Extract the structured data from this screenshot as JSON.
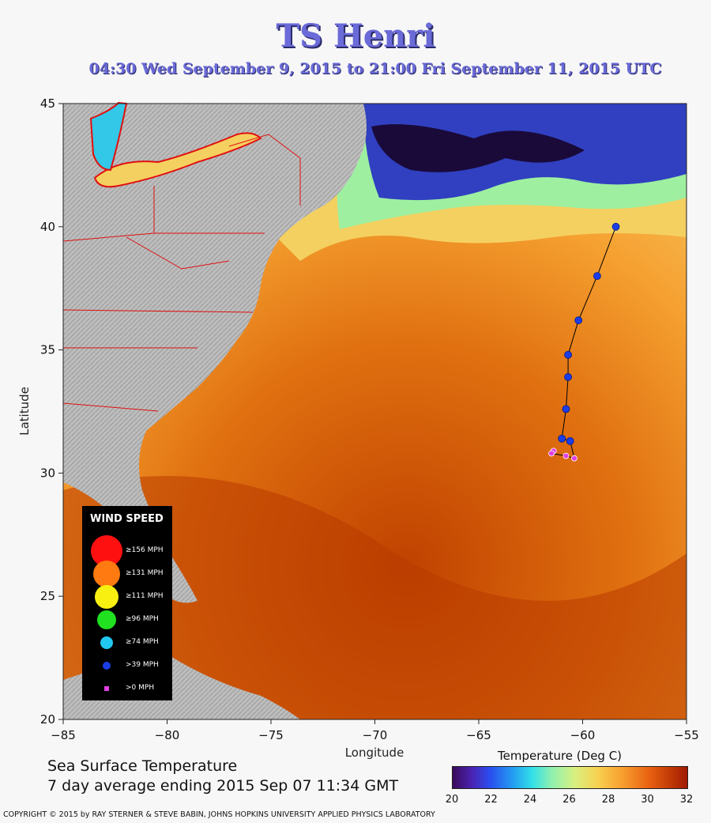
{
  "header": {
    "title": "TS Henri",
    "subtitle": "04:30 Wed September  9, 2015 to 21:00 Fri September 11, 2015  UTC"
  },
  "map": {
    "type": "hurricane-track-map",
    "x_axis": {
      "label": "Longitude",
      "ticks": [
        "-85",
        "-80",
        "-75",
        "-70",
        "-65",
        "-60",
        "-55"
      ],
      "range": [
        -85,
        -55
      ]
    },
    "y_axis": {
      "label": "Latitude",
      "ticks": [
        "20",
        "25",
        "30",
        "35",
        "40",
        "45"
      ],
      "range": [
        20,
        45
      ]
    },
    "track": [
      {
        "lon": -61.4,
        "lat": 30.9,
        "category": ">0 MPH"
      },
      {
        "lon": -61.5,
        "lat": 30.8,
        "category": ">0 MPH"
      },
      {
        "lon": -60.8,
        "lat": 30.7,
        "category": ">0 MPH"
      },
      {
        "lon": -60.4,
        "lat": 30.6,
        "category": ">0 MPH"
      },
      {
        "lon": -60.6,
        "lat": 31.3,
        "category": ">39 MPH"
      },
      {
        "lon": -61.0,
        "lat": 31.4,
        "category": ">39 MPH"
      },
      {
        "lon": -60.8,
        "lat": 32.6,
        "category": ">39 MPH"
      },
      {
        "lon": -60.7,
        "lat": 33.9,
        "category": ">39 MPH"
      },
      {
        "lon": -60.7,
        "lat": 34.8,
        "category": ">39 MPH"
      },
      {
        "lon": -60.2,
        "lat": 36.2,
        "category": ">39 MPH"
      },
      {
        "lon": -59.3,
        "lat": 38.0,
        "category": ">39 MPH"
      },
      {
        "lon": -58.4,
        "lat": 40.0,
        "category": ">39 MPH"
      }
    ],
    "colors": {
      "track_line": "#000000",
      "strong": "#1a3de8",
      "weak": "#e040e0",
      "state_lines": "#e01010"
    }
  },
  "legend": {
    "title": "WIND SPEED",
    "items": [
      {
        "label": "≥156 MPH",
        "color": "#ff1010"
      },
      {
        "label": "≥131 MPH",
        "color": "#ff7a10"
      },
      {
        "label": "≥111 MPH",
        "color": "#f8f010"
      },
      {
        "label": "≥96 MPH",
        "color": "#20e020"
      },
      {
        "label": "≥74 MPH",
        "color": "#20c8f0"
      },
      {
        "label": ">39 MPH",
        "color": "#1a3de8"
      },
      {
        "label": ">0 MPH",
        "color": "#e040e0"
      }
    ]
  },
  "colorbar": {
    "title": "Temperature (Deg C)",
    "ticks": [
      "20",
      "22",
      "24",
      "26",
      "28",
      "30",
      "32"
    ],
    "range": [
      20,
      32
    ]
  },
  "caption": {
    "line1": "Sea Surface Temperature",
    "line2": "7 day average ending 2015 Sep 07 11:34 GMT"
  },
  "copyright": "COPYRIGHT © 2015 by RAY STERNER & STEVE BABIN, JOHNS HOPKINS UNIVERSITY APPLIED PHYSICS LABORATORY"
}
